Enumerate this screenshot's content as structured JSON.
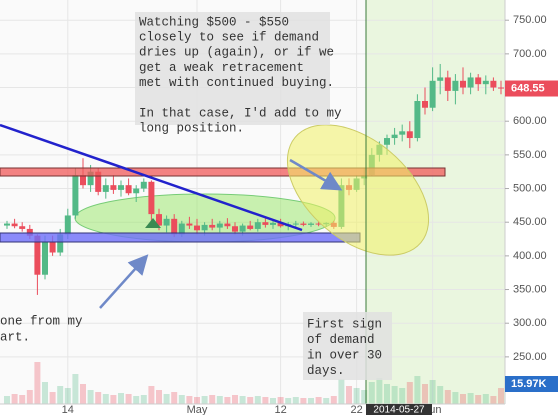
{
  "chart_data": {
    "type": "candlestick",
    "categories": [
      "2014-04-06",
      "2014-04-07",
      "2014-04-08",
      "2014-04-09",
      "2014-04-10",
      "2014-04-11",
      "2014-04-12",
      "2014-04-13",
      "2014-04-14",
      "2014-04-15",
      "2014-04-16",
      "2014-04-17",
      "2014-04-18",
      "2014-04-19",
      "2014-04-20",
      "2014-04-21",
      "2014-04-22",
      "2014-04-23",
      "2014-04-24",
      "2014-04-25",
      "2014-04-26",
      "2014-04-27",
      "2014-04-28",
      "2014-04-29",
      "2014-04-30",
      "2014-05-01",
      "2014-05-02",
      "2014-05-03",
      "2014-05-04",
      "2014-05-05",
      "2014-05-06",
      "2014-05-07",
      "2014-05-08",
      "2014-05-09",
      "2014-05-10",
      "2014-05-11",
      "2014-05-12",
      "2014-05-13",
      "2014-05-14",
      "2014-05-15",
      "2014-05-16",
      "2014-05-17",
      "2014-05-18",
      "2014-05-19",
      "2014-05-20",
      "2014-05-21",
      "2014-05-22",
      "2014-05-23",
      "2014-05-24",
      "2014-05-25",
      "2014-05-26",
      "2014-05-27",
      "2014-05-28",
      "2014-05-29",
      "2014-05-30",
      "2014-05-31",
      "2014-06-01",
      "2014-06-02",
      "2014-06-03",
      "2014-06-04",
      "2014-06-05",
      "2014-06-06",
      "2014-06-07",
      "2014-06-08",
      "2014-06-09",
      "2014-06-10"
    ],
    "open": [
      445,
      448,
      444,
      440,
      430,
      372,
      420,
      405,
      432,
      460,
      520,
      505,
      525,
      495,
      505,
      498,
      505,
      493,
      500,
      510,
      462,
      445,
      455,
      432,
      448,
      445,
      438,
      446,
      442,
      448,
      444,
      436,
      445,
      440,
      450,
      446,
      449,
      444,
      447,
      448,
      446,
      448,
      447,
      449,
      443,
      505,
      498,
      515,
      520,
      550,
      565,
      575,
      580,
      585,
      575,
      630,
      620,
      660,
      665,
      645,
      660,
      650,
      665,
      655,
      660,
      650
    ],
    "high": [
      452,
      455,
      450,
      446,
      432,
      430,
      430,
      440,
      470,
      530,
      545,
      535,
      530,
      515,
      520,
      512,
      515,
      505,
      515,
      512,
      470,
      460,
      462,
      452,
      458,
      455,
      450,
      455,
      452,
      456,
      450,
      448,
      452,
      455,
      458,
      452,
      455,
      450,
      452,
      451,
      450,
      452,
      450,
      452,
      515,
      515,
      520,
      530,
      560,
      570,
      580,
      590,
      595,
      600,
      640,
      650,
      680,
      685,
      675,
      670,
      680,
      672,
      670,
      668,
      665,
      660
    ],
    "low": [
      440,
      441,
      436,
      425,
      342,
      365,
      400,
      400,
      425,
      455,
      500,
      495,
      490,
      485,
      492,
      488,
      490,
      480,
      495,
      452,
      438,
      435,
      428,
      428,
      440,
      432,
      430,
      438,
      435,
      440,
      432,
      430,
      438,
      436,
      442,
      440,
      442,
      438,
      443,
      444,
      443,
      444,
      443,
      440,
      440,
      490,
      495,
      505,
      518,
      540,
      550,
      565,
      570,
      560,
      570,
      610,
      615,
      640,
      630,
      625,
      640,
      640,
      645,
      640,
      645,
      640
    ],
    "close": [
      448,
      444,
      440,
      430,
      372,
      420,
      405,
      432,
      460,
      520,
      505,
      525,
      495,
      505,
      498,
      505,
      493,
      500,
      510,
      462,
      445,
      455,
      432,
      448,
      445,
      438,
      446,
      442,
      448,
      444,
      436,
      445,
      440,
      450,
      446,
      449,
      444,
      447,
      448,
      446,
      448,
      447,
      449,
      443,
      505,
      498,
      515,
      520,
      550,
      565,
      575,
      580,
      585,
      575,
      630,
      620,
      660,
      665,
      645,
      660,
      650,
      665,
      655,
      660,
      650,
      648.55
    ],
    "volume": [
      8,
      10,
      9,
      14,
      42,
      22,
      12,
      18,
      16,
      30,
      20,
      14,
      12,
      10,
      9,
      11,
      10,
      8,
      9,
      18,
      14,
      10,
      12,
      9,
      8,
      7,
      8,
      9,
      8,
      7,
      9,
      8,
      7,
      8,
      7,
      6,
      7,
      6,
      7,
      6,
      6,
      7,
      6,
      8,
      25,
      18,
      16,
      14,
      22,
      26,
      20,
      18,
      16,
      22,
      28,
      20,
      24,
      18,
      14,
      12,
      10,
      11,
      9,
      10,
      8,
      15.97
    ],
    "last_volume_label": "15.97K",
    "vlim": [
      0,
      60
    ],
    "up_color": "#53b987",
    "down_color": "#eb4d5c",
    "ylim": [
      180,
      780
    ],
    "yticks": [
      {
        "value": 250,
        "label": "250.00"
      },
      {
        "value": 300,
        "label": "300.00"
      },
      {
        "value": 350,
        "label": "350.00"
      },
      {
        "value": 400,
        "label": "400.00"
      },
      {
        "value": 450,
        "label": "450.00"
      },
      {
        "value": 500,
        "label": "500.00"
      },
      {
        "value": 550,
        "label": "550.00"
      },
      {
        "value": 600,
        "label": "600.00"
      },
      {
        "value": 650,
        "label": "650.00"
      },
      {
        "value": 700,
        "label": "700.00"
      },
      {
        "value": 750,
        "label": "750.00"
      }
    ],
    "xticks": [
      {
        "value": "2014-04-14",
        "label": "14"
      },
      {
        "value": "2014-05-01",
        "label": "May"
      },
      {
        "value": "2014-05-12",
        "label": "12"
      },
      {
        "value": "2014-05-22",
        "label": "22"
      },
      {
        "value": "2014-06-01",
        "label": "Jun"
      }
    ],
    "crosshair_label": "2014-05-27",
    "grid": true,
    "annotations": [
      {
        "lines": [
          "Watching $500 - $550",
          "closely to see if demand",
          "dries up (again), or if we",
          "get a weak retracement",
          "met with continued buying.",
          "",
          "In that case, I'd add to my",
          "long position."
        ]
      },
      {
        "lines": [
          "one from my",
          "art."
        ]
      },
      {
        "lines": [
          "First sign",
          "of demand",
          "in over 30",
          "days."
        ]
      }
    ]
  }
}
